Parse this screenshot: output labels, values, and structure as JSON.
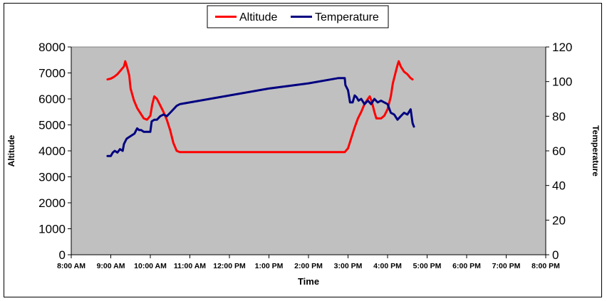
{
  "chart_data": {
    "type": "line",
    "xlabel": "Time",
    "ylabel": "Altitude",
    "y2label": "Temperature",
    "xlim": [
      "8:00 AM",
      "8:00 PM"
    ],
    "ylim": [
      0,
      8000
    ],
    "y2lim": [
      0,
      120
    ],
    "x_ticks": [
      "8:00 AM",
      "9:00 AM",
      "10:00 AM",
      "11:00 AM",
      "12:00 PM",
      "1:00 PM",
      "2:00 PM",
      "3:00 PM",
      "4:00 PM",
      "5:00 PM",
      "6:00 PM",
      "7:00 PM",
      "8:00 PM"
    ],
    "y_ticks": [
      0,
      1000,
      2000,
      3000,
      4000,
      5000,
      6000,
      7000,
      8000
    ],
    "y2_ticks": [
      0,
      20,
      40,
      60,
      80,
      100,
      120
    ],
    "grid": false,
    "legend_position": "top-center",
    "plot_background": "#c0c0c0",
    "series": [
      {
        "name": "Altitude",
        "axis": "left",
        "color": "#ff0000",
        "points": [
          [
            "8:55 AM",
            6750
          ],
          [
            "9:00 AM",
            6780
          ],
          [
            "9:05 AM",
            6850
          ],
          [
            "9:10 AM",
            6950
          ],
          [
            "9:15 AM",
            7100
          ],
          [
            "9:20 AM",
            7250
          ],
          [
            "9:22 AM",
            7450
          ],
          [
            "9:25 AM",
            7200
          ],
          [
            "9:28 AM",
            6900
          ],
          [
            "9:30 AM",
            6400
          ],
          [
            "9:35 AM",
            5950
          ],
          [
            "9:40 AM",
            5650
          ],
          [
            "9:45 AM",
            5450
          ],
          [
            "9:50 AM",
            5250
          ],
          [
            "9:55 AM",
            5200
          ],
          [
            "10:00 AM",
            5350
          ],
          [
            "10:03 AM",
            5800
          ],
          [
            "10:06 AM",
            6100
          ],
          [
            "10:10 AM",
            6000
          ],
          [
            "10:15 AM",
            5750
          ],
          [
            "10:20 AM",
            5500
          ],
          [
            "10:25 AM",
            5200
          ],
          [
            "10:30 AM",
            4800
          ],
          [
            "10:35 AM",
            4300
          ],
          [
            "10:40 AM",
            4000
          ],
          [
            "10:45 AM",
            3950
          ],
          [
            "11:00 AM",
            3950
          ],
          [
            "12:00 PM",
            3950
          ],
          [
            "1:00 PM",
            3950
          ],
          [
            "2:00 PM",
            3950
          ],
          [
            "2:55 PM",
            3950
          ],
          [
            "3:00 PM",
            4100
          ],
          [
            "3:05 PM",
            4500
          ],
          [
            "3:10 PM",
            4900
          ],
          [
            "3:15 PM",
            5250
          ],
          [
            "3:20 PM",
            5500
          ],
          [
            "3:25 PM",
            5800
          ],
          [
            "3:30 PM",
            6000
          ],
          [
            "3:33 PM",
            6100
          ],
          [
            "3:36 PM",
            5900
          ],
          [
            "3:40 PM",
            5500
          ],
          [
            "3:43 PM",
            5250
          ],
          [
            "3:50 PM",
            5250
          ],
          [
            "3:55 PM",
            5350
          ],
          [
            "4:00 PM",
            5600
          ],
          [
            "4:05 PM",
            6100
          ],
          [
            "4:08 PM",
            6600
          ],
          [
            "4:12 PM",
            7000
          ],
          [
            "4:15 PM",
            7300
          ],
          [
            "4:17 PM",
            7450
          ],
          [
            "4:20 PM",
            7250
          ],
          [
            "4:25 PM",
            7050
          ],
          [
            "4:30 PM",
            6950
          ],
          [
            "4:35 PM",
            6800
          ],
          [
            "4:38 PM",
            6750
          ]
        ]
      },
      {
        "name": "Temperature",
        "axis": "right",
        "color": "#000080",
        "points": [
          [
            "8:55 AM",
            57
          ],
          [
            "9:00 AM",
            57
          ],
          [
            "9:03 AM",
            59
          ],
          [
            "9:06 AM",
            60
          ],
          [
            "9:10 AM",
            59
          ],
          [
            "9:14 AM",
            61
          ],
          [
            "9:18 AM",
            60
          ],
          [
            "9:20 AM",
            64
          ],
          [
            "9:24 AM",
            67
          ],
          [
            "9:28 AM",
            68
          ],
          [
            "9:32 AM",
            69
          ],
          [
            "9:36 AM",
            70
          ],
          [
            "9:40 AM",
            73
          ],
          [
            "9:43 AM",
            72
          ],
          [
            "9:46 AM",
            72
          ],
          [
            "9:50 AM",
            71
          ],
          [
            "9:55 AM",
            71
          ],
          [
            "10:00 AM",
            71
          ],
          [
            "10:02 AM",
            77
          ],
          [
            "10:06 AM",
            78
          ],
          [
            "10:10 AM",
            78
          ],
          [
            "10:15 AM",
            80
          ],
          [
            "10:20 AM",
            81
          ],
          [
            "10:25 AM",
            80
          ],
          [
            "10:30 AM",
            82
          ],
          [
            "10:35 AM",
            84
          ],
          [
            "10:40 AM",
            86
          ],
          [
            "10:45 AM",
            87
          ],
          [
            "11:00 AM",
            88
          ],
          [
            "12:00 PM",
            92
          ],
          [
            "1:00 PM",
            96
          ],
          [
            "2:00 PM",
            99
          ],
          [
            "2:45 PM",
            102
          ],
          [
            "2:55 PM",
            102
          ],
          [
            "2:56 PM",
            98
          ],
          [
            "3:00 PM",
            95
          ],
          [
            "3:03 PM",
            88
          ],
          [
            "3:07 PM",
            88
          ],
          [
            "3:10 PM",
            92
          ],
          [
            "3:13 PM",
            91
          ],
          [
            "3:16 PM",
            89
          ],
          [
            "3:20 PM",
            90
          ],
          [
            "3:25 PM",
            87
          ],
          [
            "3:30 PM",
            89
          ],
          [
            "3:35 PM",
            87
          ],
          [
            "3:40 PM",
            90
          ],
          [
            "3:45 PM",
            88
          ],
          [
            "3:50 PM",
            89
          ],
          [
            "3:55 PM",
            88
          ],
          [
            "4:00 PM",
            87
          ],
          [
            "4:05 PM",
            82
          ],
          [
            "4:10 PM",
            81
          ],
          [
            "4:15 PM",
            78
          ],
          [
            "4:20 PM",
            80
          ],
          [
            "4:25 PM",
            82
          ],
          [
            "4:30 PM",
            81
          ],
          [
            "4:35 PM",
            84
          ],
          [
            "4:38 PM",
            76
          ],
          [
            "4:40 PM",
            74
          ]
        ]
      }
    ]
  }
}
